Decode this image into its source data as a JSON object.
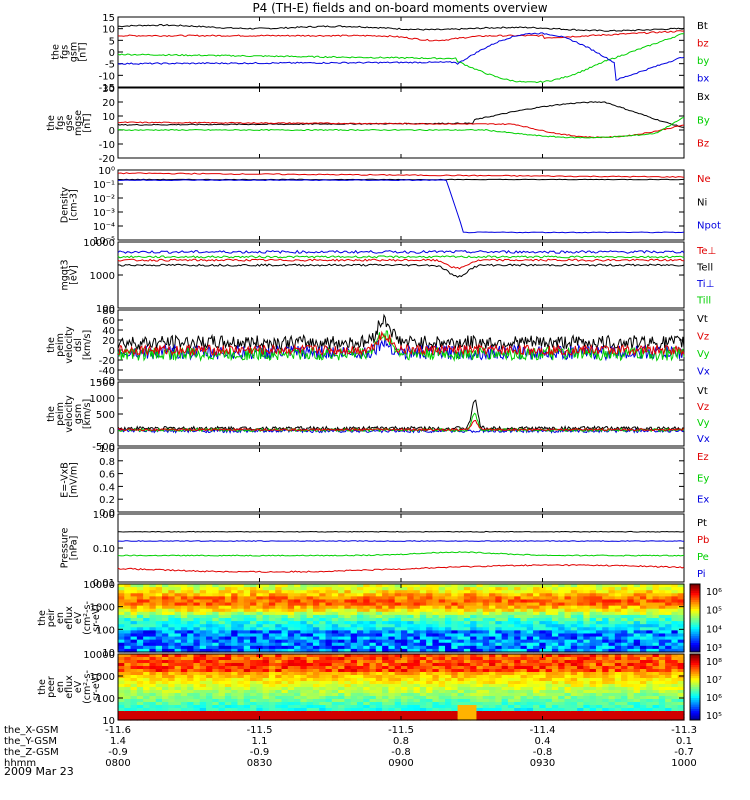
{
  "title": "P4 (TH-E) fields and on-board moments overview",
  "colors": {
    "black": "#000000",
    "red": "#e00000",
    "green": "#00d000",
    "blue": "#0000e0"
  },
  "panels": [
    {
      "id": "fgs",
      "ylabel": [
        "the",
        "fgs",
        "gsm",
        "[nT]"
      ],
      "ticks": [
        "15",
        "10",
        "5",
        "0",
        "-5",
        "-10",
        "-15"
      ],
      "ylim": [
        -15,
        15
      ],
      "legend": [
        {
          "text": "Bt",
          "color": "black"
        },
        {
          "text": "bz",
          "color": "red"
        },
        {
          "text": "by",
          "color": "green"
        },
        {
          "text": "bx",
          "color": "blue"
        }
      ]
    },
    {
      "id": "fgs-mgse",
      "ylabel": [
        "the",
        "fgs",
        "gse",
        "mgse",
        "[nT]"
      ],
      "ticks": [
        "30",
        "20",
        "10",
        "0",
        "-10",
        "-20"
      ],
      "ylim": [
        -25,
        30
      ],
      "legend": [
        {
          "text": "Bx",
          "color": "black"
        },
        {
          "text": "By",
          "color": "green"
        },
        {
          "text": "Bz",
          "color": "red"
        }
      ]
    },
    {
      "id": "density",
      "ylabel": [
        "Density",
        "[cm-3]"
      ],
      "ticks": [
        "10⁰",
        "10⁻¹",
        "10⁻²",
        "10⁻³",
        "10⁻⁴",
        "10⁻⁵"
      ],
      "ylim": [
        -5,
        0.5
      ],
      "log": true,
      "legend": [
        {
          "text": "Ne",
          "color": "red"
        },
        {
          "text": "Ni",
          "color": "black"
        },
        {
          "text": "Npot",
          "color": "blue"
        }
      ]
    },
    {
      "id": "temp",
      "ylabel": [
        "mgqt3",
        "[eV]"
      ],
      "ticks": [
        "10000",
        "1000",
        "100"
      ],
      "ylim": [
        2,
        4
      ],
      "log": true,
      "legend": [
        {
          "text": "Te⊥",
          "color": "red"
        },
        {
          "text": "Tell",
          "color": "black"
        },
        {
          "text": "Ti⊥",
          "color": "blue"
        },
        {
          "text": "Till",
          "color": "green"
        }
      ]
    },
    {
      "id": "velocity-dsl",
      "ylabel": [
        "the",
        "peim",
        "velocity",
        "dsl",
        "[km/s]"
      ],
      "ticks": [
        "80",
        "60",
        "40",
        "20",
        "0",
        "-20",
        "-40",
        "-60"
      ],
      "ylim": [
        -60,
        80
      ],
      "legend": [
        {
          "text": "Vt",
          "color": "black"
        },
        {
          "text": "Vz",
          "color": "red"
        },
        {
          "text": "Vy",
          "color": "green"
        },
        {
          "text": "Vx",
          "color": "blue"
        }
      ]
    },
    {
      "id": "velocity-gsm",
      "ylabel": [
        "the",
        "peim",
        "velocity",
        "gsm",
        "[km/s]"
      ],
      "ticks": [
        "1500",
        "1000",
        "500",
        "0",
        "-500"
      ],
      "ylim": [
        -500,
        1500
      ],
      "legend": [
        {
          "text": "Vt",
          "color": "black"
        },
        {
          "text": "Vz",
          "color": "red"
        },
        {
          "text": "Vy",
          "color": "green"
        },
        {
          "text": "Vx",
          "color": "blue"
        }
      ]
    },
    {
      "id": "efield",
      "ylabel": [
        "E=-VxB",
        "[mV/m]"
      ],
      "ticks": [
        "1.0",
        "0.8",
        "0.6",
        "0.4",
        "0.2",
        "0.0"
      ],
      "ylim": [
        0,
        1
      ],
      "legend": [
        {
          "text": "Ez",
          "color": "red"
        },
        {
          "text": "Ey",
          "color": "green"
        },
        {
          "text": "Ex",
          "color": "blue"
        }
      ]
    },
    {
      "id": "pressure",
      "ylabel": [
        "Pressure",
        "[nPa]"
      ],
      "ticks": [
        "1.00",
        "0.10",
        "0.01"
      ],
      "ylim": [
        -2,
        0
      ],
      "log": true,
      "legend": [
        {
          "text": "Pt",
          "color": "black"
        },
        {
          "text": "Pb",
          "color": "red"
        },
        {
          "text": "Pe",
          "color": "green"
        },
        {
          "text": "Pi",
          "color": "blue"
        }
      ]
    },
    {
      "id": "ion-spec",
      "ylabel": [
        "the",
        "peir",
        "en",
        "eflux",
        "eV",
        "(cm²-s-",
        "sr-eV)"
      ],
      "ticks": [
        "10000",
        "1000",
        "100",
        "10"
      ],
      "ylim": [
        1,
        4.1
      ],
      "colorbar": [
        "10⁶",
        "10⁵",
        "10⁴",
        "10³"
      ]
    },
    {
      "id": "ele-spec",
      "ylabel": [
        "the",
        "peer",
        "en",
        "eflux",
        "eV",
        "(cm²-s-",
        "sr-eV)"
      ],
      "ticks": [
        "10000",
        "1000",
        "100",
        "10"
      ],
      "ylim": [
        1,
        4.1
      ],
      "colorbar": [
        "10⁸",
        "10⁷",
        "10⁶",
        "10⁵"
      ]
    }
  ],
  "xaxis": {
    "rows": [
      {
        "label": "the_X-GSM",
        "values": [
          "-11.6",
          "-11.5",
          "-11.5",
          "-11.4",
          "-11.3"
        ]
      },
      {
        "label": "the_Y-GSM",
        "values": [
          "1.4",
          "1.1",
          "0.8",
          "0.4",
          "0.1"
        ]
      },
      {
        "label": "the_Z-GSM",
        "values": [
          "-0.9",
          "-0.9",
          "-0.8",
          "-0.8",
          "-0.7"
        ]
      },
      {
        "label": "hhmm",
        "values": [
          "0800",
          "0830",
          "0900",
          "0930",
          "1000"
        ]
      }
    ],
    "date": "2009 Mar 23"
  },
  "chart_data": {
    "type": "line",
    "x": [
      "0800",
      "0830",
      "0900",
      "0930",
      "1000"
    ],
    "series": [
      {
        "panel": "fgs",
        "name": "Bt",
        "values": [
          11,
          10,
          9,
          10,
          9
        ]
      },
      {
        "panel": "fgs",
        "name": "bz",
        "values": [
          7,
          7,
          4,
          6,
          7
        ]
      },
      {
        "panel": "fgs",
        "name": "by",
        "values": [
          -1,
          -2,
          -3,
          -12,
          8
        ]
      },
      {
        "panel": "fgs",
        "name": "bx",
        "values": [
          -5,
          -5,
          -4,
          8,
          -12
        ]
      },
      {
        "panel": "pressure",
        "name": "Pt",
        "values": [
          0.3,
          0.3,
          0.3,
          0.3,
          0.3
        ]
      },
      {
        "panel": "pressure",
        "name": "Pi",
        "values": [
          0.17,
          0.16,
          0.17,
          0.17,
          0.17
        ]
      },
      {
        "panel": "pressure",
        "name": "Pe",
        "values": [
          0.06,
          0.05,
          0.07,
          0.05,
          0.05
        ]
      },
      {
        "panel": "pressure",
        "name": "Pb",
        "values": [
          0.03,
          0.02,
          0.025,
          0.02,
          0.03
        ]
      }
    ]
  }
}
